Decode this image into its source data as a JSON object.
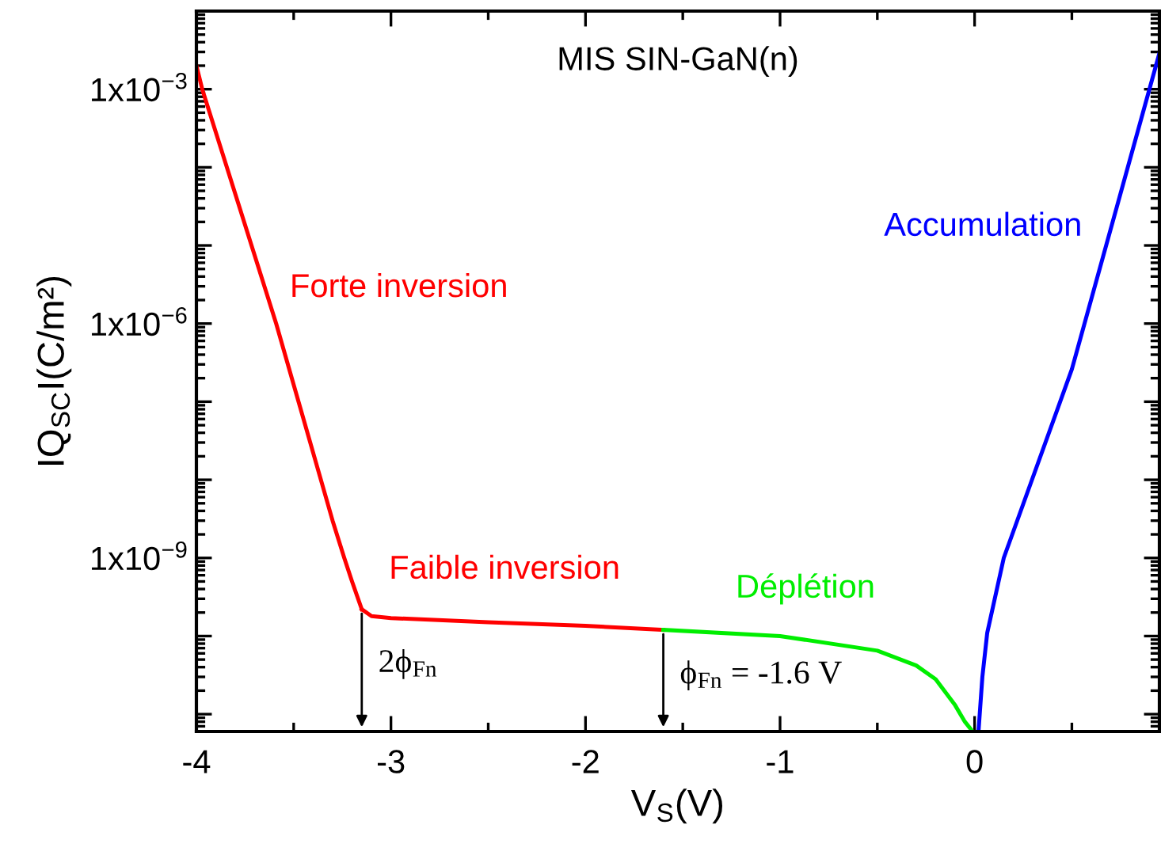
{
  "chart_data": {
    "type": "line",
    "title": "MIS SIN-GaN(n)",
    "xlabel": "V$_{S}$(V)",
    "ylabel": "IQ$_{SC}$I(C/m²)",
    "log": "y",
    "grid": false,
    "legend": false,
    "marker": "none",
    "line_style": "solid",
    "xlim": [
      -4,
      0.95
    ],
    "ylim": [
      6e-12,
      0.01
    ],
    "xticks": [
      -4,
      {
        "value": -3.5,
        "label": null
      },
      -3,
      {
        "value": -2.5,
        "label": null
      },
      -2,
      {
        "value": -1.5,
        "label": null
      },
      -1,
      {
        "value": -0.5,
        "label": null
      },
      0,
      {
        "value": 0.5,
        "label": null
      }
    ],
    "yticks": [
      {
        "value": 1e-11,
        "label": null
      },
      {
        "value": 1e-10,
        "label": null
      },
      {
        "value": 1e-09,
        "label": "1x10$^{−9}$"
      },
      {
        "value": 1e-08,
        "label": null
      },
      {
        "value": 1e-07,
        "label": null
      },
      {
        "value": 1e-06,
        "label": "1x10$^{−6}$"
      },
      {
        "value": 1e-05,
        "label": null
      },
      {
        "value": 0.0001,
        "label": null
      },
      {
        "value": 0.001,
        "label": "1x10$^{−3}$"
      },
      {
        "value": 0.01,
        "label": null
      }
    ],
    "series": [
      {
        "name": "Forte inversion",
        "color": "#ff0000",
        "x": [
          -4,
          -3.97,
          -3.59,
          -3.3,
          -3.24,
          -3.2,
          -3.15
        ],
        "values": [
          0.002,
          0.001,
          1e-06,
          3e-09,
          1e-09,
          5e-10,
          2.2e-10
        ]
      },
      {
        "name": "Faible inversion",
        "color": "#ff0000",
        "x": [
          -3.15,
          -3.1,
          -3.0,
          -2.5,
          -2.0,
          -1.6
        ],
        "values": [
          2.2e-10,
          1.8e-10,
          1.7e-10,
          1.5e-10,
          1.35e-10,
          1.2e-10
        ]
      },
      {
        "name": "Déplétion",
        "color": "#00ee00",
        "x": [
          -1.6,
          -1.0,
          -0.5,
          -0.3,
          -0.2,
          -0.1,
          -0.05,
          -0.01
        ],
        "values": [
          1.2e-10,
          1e-10,
          6.5e-11,
          4.2e-11,
          2.8e-11,
          1.3e-11,
          8e-12,
          6e-12
        ]
      },
      {
        "name": "Accumulation",
        "color": "#0000ff",
        "x": [
          0.02,
          0.04,
          0.065,
          0.15,
          0.5,
          0.95
        ],
        "values": [
          6e-12,
          3e-11,
          1.1e-10,
          1e-09,
          2.6e-07,
          0.0029
        ]
      }
    ],
    "annotations": [
      {
        "text": "2ϕ$_{Fn}$",
        "x": -3.15,
        "y": 2.2e-10
      },
      {
        "text": "ϕ$_{Fn}$ = -1.6 V",
        "x": -1.6,
        "y": 1.2e-10
      }
    ]
  }
}
